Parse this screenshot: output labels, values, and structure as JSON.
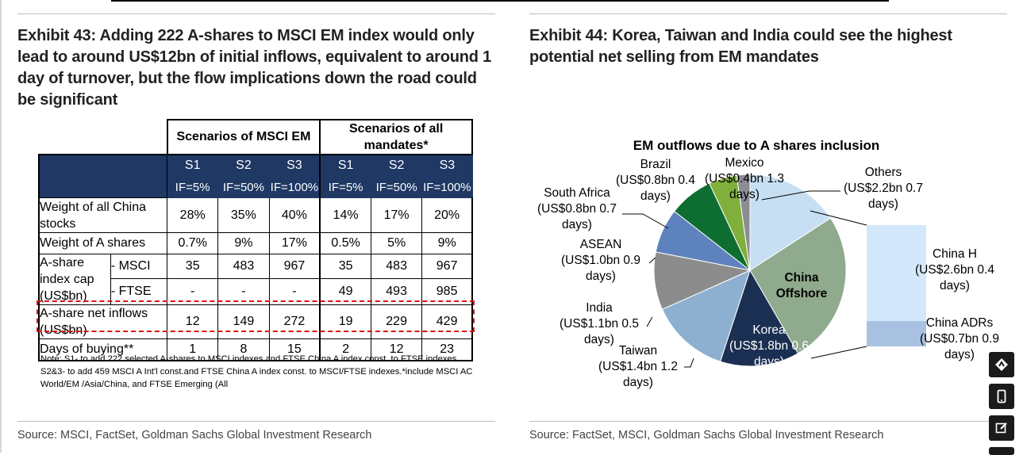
{
  "left": {
    "title": "Exhibit 43: Adding 222 A-shares to MSCI EM index would only lead to around US$12bn of initial inflows, equivalent to around 1 day of turnover, but the flow implications down the road could be significant",
    "table": {
      "group_headers": [
        "Scenarios of MSCI EM",
        "Scenarios of all mandates*"
      ],
      "scenario_labels": [
        "S1",
        "S2",
        "S3",
        "S1",
        "S2",
        "S3"
      ],
      "if_labels": [
        "IF=5%",
        "IF=50%",
        "IF=100%",
        "IF=5%",
        "IF=50%",
        "IF=100%"
      ],
      "rows": {
        "weight_china": {
          "label": "Weight of all China stocks",
          "values": [
            "28%",
            "35%",
            "40%",
            "14%",
            "17%",
            "20%"
          ]
        },
        "weight_a": {
          "label": "Weight of A shares",
          "values": [
            "0.7%",
            "9%",
            "17%",
            "0.5%",
            "5%",
            "9%"
          ]
        },
        "cap_label": "A-share index cap (US$bn)",
        "msci": {
          "label": "- MSCI",
          "values": [
            "35",
            "483",
            "967",
            "35",
            "483",
            "967"
          ]
        },
        "ftse": {
          "label": "- FTSE",
          "values": [
            "-",
            "-",
            "-",
            "49",
            "493",
            "985"
          ]
        },
        "inflows": {
          "label": "A-share net inflows (US$bn)",
          "values": [
            "12",
            "149",
            "272",
            "19",
            "229",
            "429"
          ]
        },
        "days": {
          "label": "Days of buying**",
          "values": [
            "1",
            "8",
            "15",
            "2",
            "12",
            "23"
          ]
        }
      }
    },
    "note": "Note: S1- to add 222 selected A-shares to MSCI indexes and FTSE China A index const. to FTSE indexes. S2&3- to add 459 MSCI A Int'l const.and FTSE China A index const. to MSCI/FTSE indexes.*include MSCI AC World/EM /Asia/China, and FTSE Emerging (All",
    "source": "Source: MSCI, FactSet, Goldman Sachs Global Investment Research"
  },
  "right": {
    "title": "Exhibit 44: Korea, Taiwan and India could see the highest potential net selling from EM mandates",
    "source": "Source: FactSet, MSCI, Goldman Sachs Global Investment Research"
  },
  "chart_data": {
    "type": "pie",
    "title": "EM outflows due to A shares inclusion",
    "unit": "US$bn",
    "slices": [
      {
        "label": "China Offshore",
        "value": null,
        "color": "#8faa8c"
      },
      {
        "label": "Korea",
        "value": 1.8,
        "days": 0.6,
        "color": "#1a2f52"
      },
      {
        "label": "Taiwan",
        "value": 1.4,
        "days": 1.2,
        "color": "#8eb0d0"
      },
      {
        "label": "India",
        "value": 1.1,
        "days": 0.5,
        "color": "#8c8c8c"
      },
      {
        "label": "ASEAN",
        "value": 1.0,
        "days": 0.9,
        "color": "#5e82bd"
      },
      {
        "label": "South Africa",
        "value": 0.8,
        "days": 0.7,
        "color": "#0e6e32"
      },
      {
        "label": "Brazil",
        "value": 0.8,
        "days": 0.4,
        "color": "#7fb03c"
      },
      {
        "label": "Mexico",
        "value": 0.4,
        "days": 1.3,
        "color": "#8c8c95"
      },
      {
        "label": "Others",
        "value": 2.2,
        "days": 0.7,
        "color": "#c7dff3"
      }
    ],
    "breakout": [
      {
        "label": "China H",
        "value": 2.6,
        "days": 0.4,
        "color": "#d3e8fb"
      },
      {
        "label": "China ADRs",
        "value": 0.7,
        "days": 0.9,
        "color": "#a9c1e1"
      }
    ],
    "labels": {
      "brazil": [
        "Brazil",
        "(US$0.8bn 0.4",
        "days)"
      ],
      "mexico": [
        "Mexico",
        "(US$0.4bn 1.3",
        "days)"
      ],
      "others": [
        "Others",
        "(US$2.2bn 0.7",
        "days)"
      ],
      "south_africa": [
        "South Africa",
        "(US$0.8bn 0.7",
        "days)"
      ],
      "asean": [
        "ASEAN",
        "(US$1.0bn 0.9",
        "days)"
      ],
      "india": [
        "India",
        "(US$1.1bn 0.5",
        "days)"
      ],
      "taiwan": [
        "Taiwan",
        "(US$1.4bn 1.2",
        "days)"
      ],
      "korea": [
        "Korea",
        "(US$1.8bn 0.6",
        "days)"
      ],
      "china_offshore": [
        "China",
        "Offshore"
      ],
      "china_h": [
        "China H",
        "(US$2.6bn 0.4",
        "days)"
      ],
      "china_adrs": [
        "China ADRs",
        "(US$0.7bn 0.9",
        "days)"
      ]
    }
  },
  "side_icons": [
    "share-icon",
    "mobile-icon",
    "edit-icon"
  ]
}
